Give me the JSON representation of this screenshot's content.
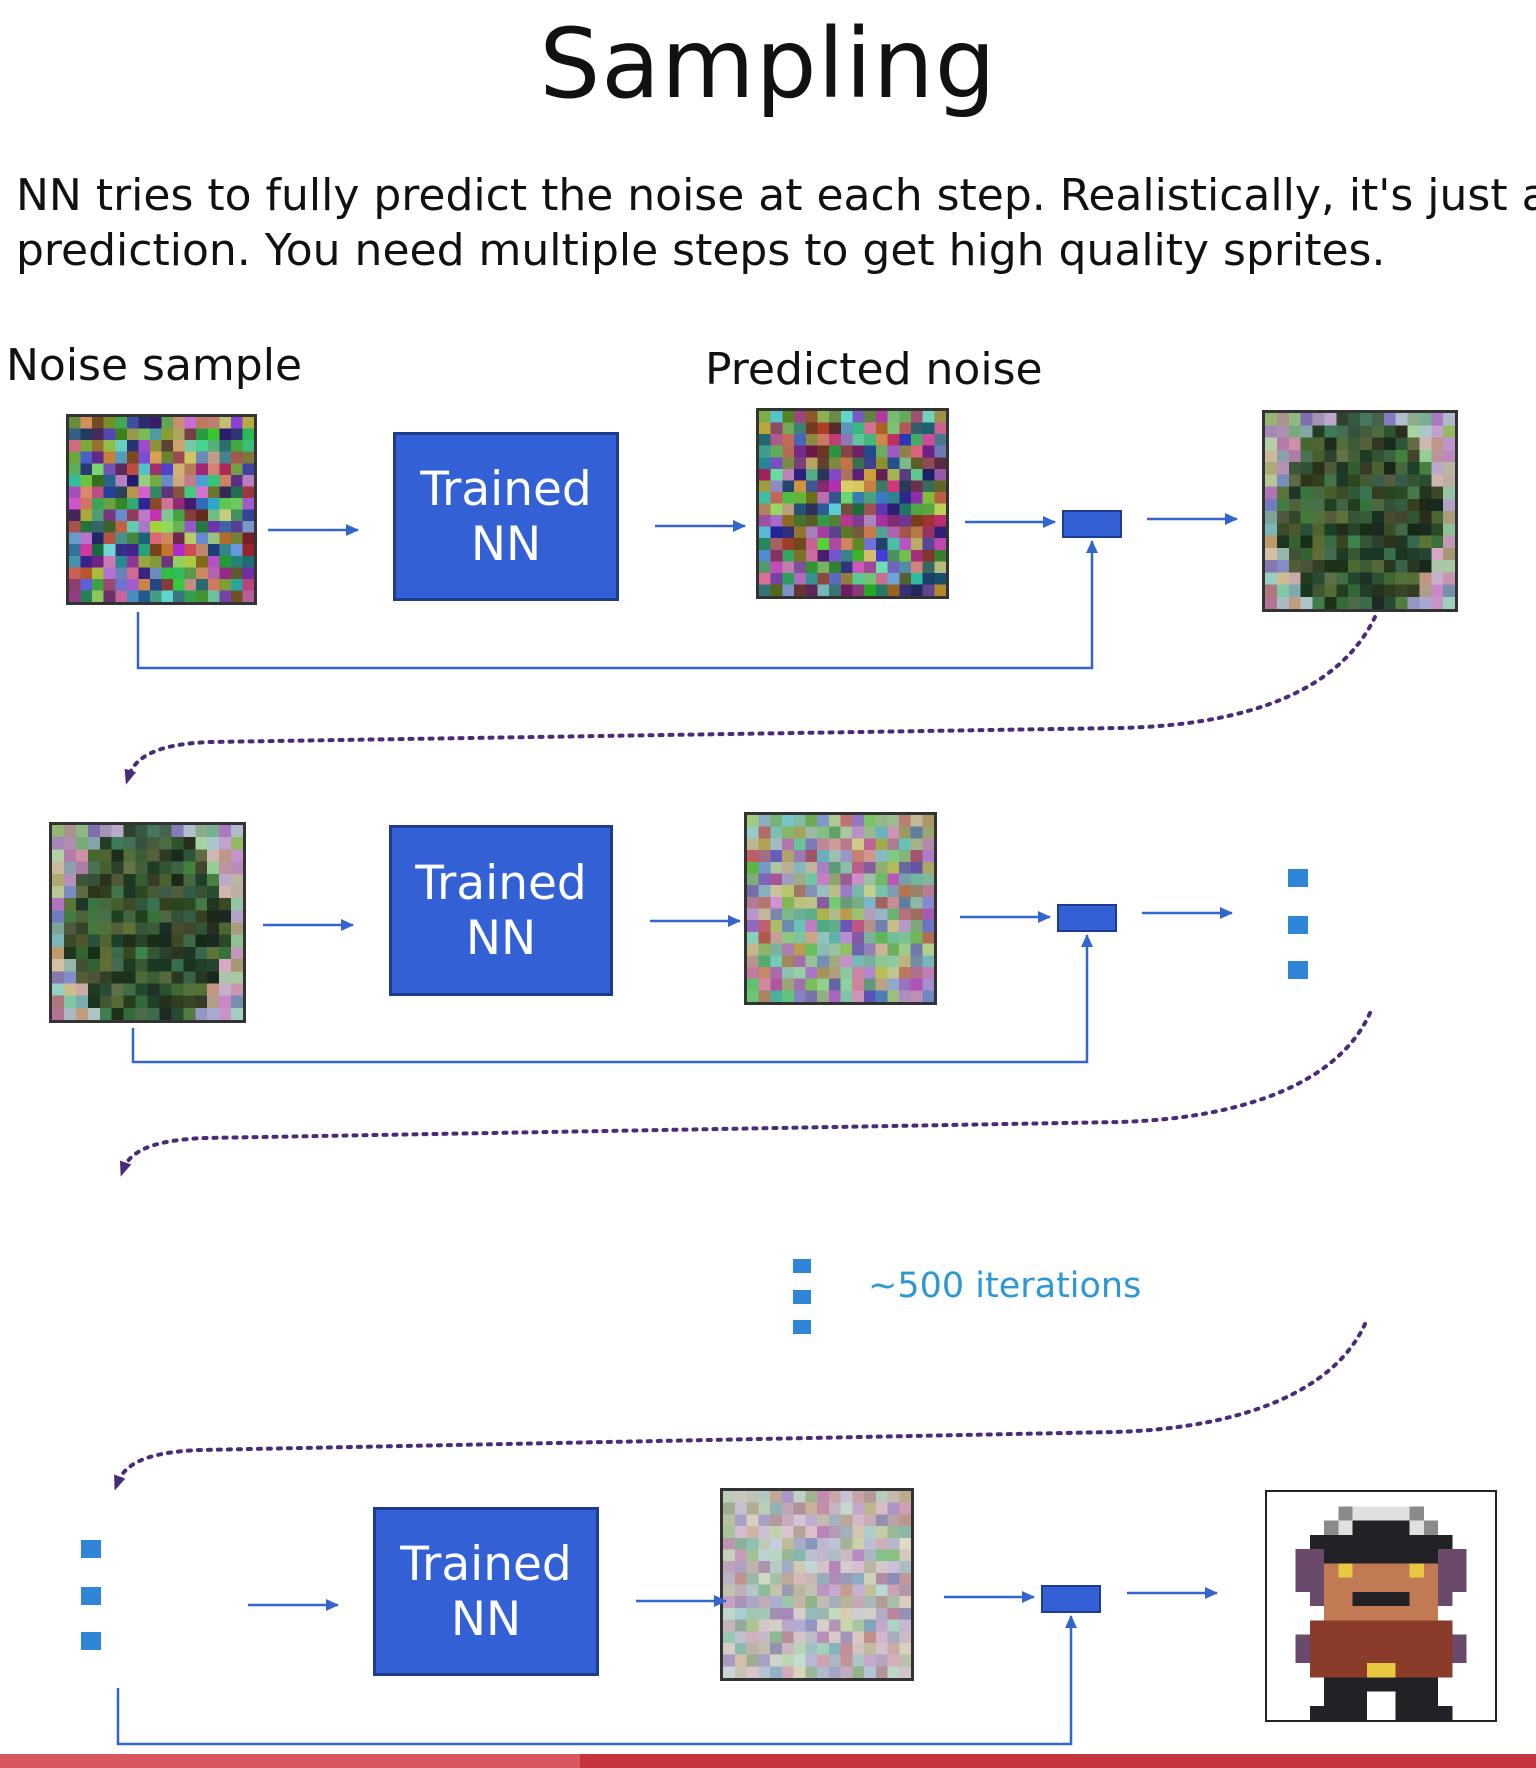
{
  "title": "Sampling",
  "description": [
    "NN tries to fully predict the noise at each step. Realistically, it's just a",
    "prediction. You need multiple steps to get high quality sprites."
  ],
  "labels": {
    "noise_sample": "Noise sample",
    "predicted_noise": "Predicted noise"
  },
  "model": {
    "line1": "Trained",
    "line2": "NN"
  },
  "iterations_label": "~500 iterations",
  "colors": {
    "nn_box": "#3361d5",
    "arrow": "#3366cc",
    "dotted_arrow": "#4a2a7a",
    "ellipsis": "#2f86d6",
    "iteration_text": "#2c98d6",
    "bottom_bar": "#c8343d"
  }
}
